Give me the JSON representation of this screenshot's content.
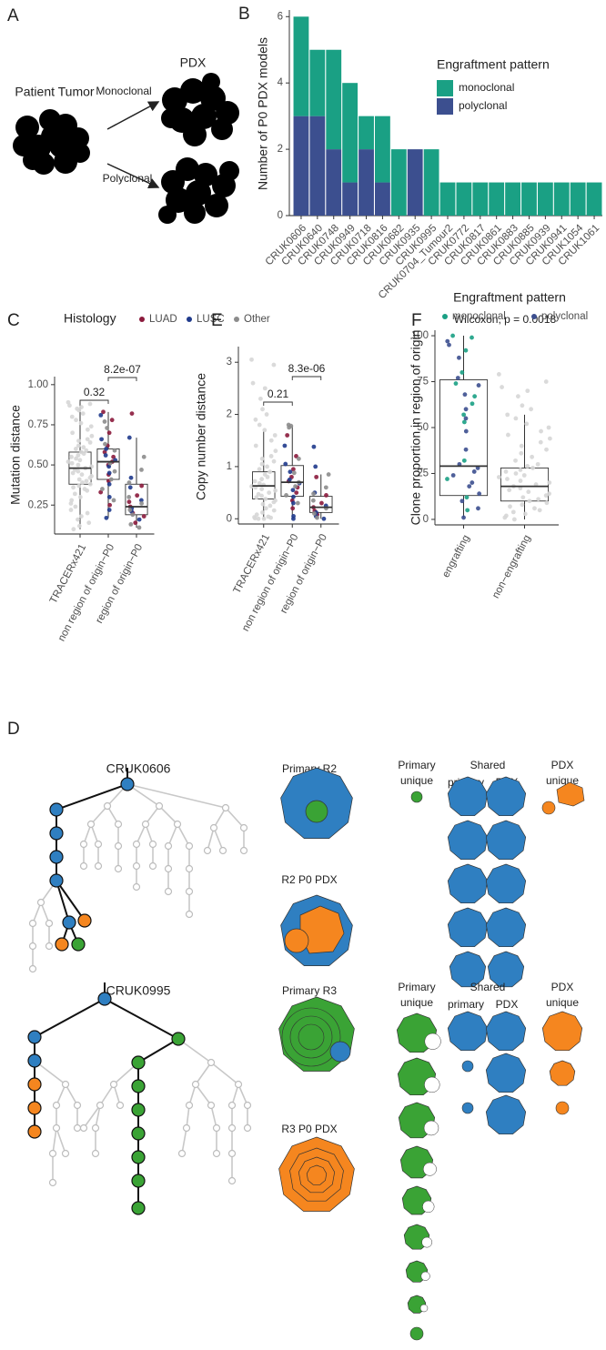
{
  "panel_a": {
    "letter": "A",
    "source": "Patient Tumor",
    "target": "PDX",
    "mono": "Monoclonal",
    "poly": "Polyclonal"
  },
  "chart_data": [
    {
      "type": "stacked-bar",
      "panel": "B",
      "ylabel": "Number of P0 PDX models",
      "categories": [
        "CRUK0606",
        "CRUK0640",
        "CRUK0748",
        "CRUK0949",
        "CRUK0718",
        "CRUK0816",
        "CRUK0682",
        "CRUK0935",
        "CRUK0995",
        "CRUK0704_Tumour2",
        "CRUK0772",
        "CRUK0817",
        "CRUK0861",
        "CRUK0883",
        "CRUK0885",
        "CRUK0939",
        "CRUK0941",
        "CRUK1054",
        "CRUK1061"
      ],
      "series": [
        {
          "name": "monoclonal",
          "color": "#1aa084",
          "values": [
            3,
            2,
            3,
            3,
            1,
            2,
            2,
            0,
            2,
            1,
            1,
            1,
            1,
            1,
            1,
            1,
            1,
            1,
            1
          ]
        },
        {
          "name": "polyclonal",
          "color": "#3c4f8f",
          "values": [
            3,
            3,
            2,
            1,
            2,
            1,
            0,
            2,
            0,
            0,
            0,
            0,
            0,
            0,
            0,
            0,
            0,
            0,
            0
          ]
        }
      ],
      "ylim": [
        0,
        6.2
      ],
      "yticks": [
        0,
        2,
        4,
        6
      ],
      "legend_title": "Engraftment pattern",
      "grid": false
    },
    {
      "type": "box",
      "panel": "C",
      "ylabel": "Mutation distance",
      "categories": [
        "TRACERx421",
        "non region of origin−P0",
        "region of origin−P0"
      ],
      "q1": [
        0.38,
        0.41,
        0.19
      ],
      "median": [
        0.48,
        0.52,
        0.24
      ],
      "q3": [
        0.58,
        0.6,
        0.38
      ],
      "whisker_low": [
        0.1,
        0.17,
        0.11
      ],
      "whisker_high": [
        0.89,
        0.83,
        0.67
      ],
      "ylim": [
        0.07,
        1.05
      ],
      "yticks": [
        0.25,
        {
          "value": 0.5,
          "label": "0.50"
        },
        0.75,
        {
          "value": 1,
          "label": "1.00"
        }
      ],
      "comparisons": [
        {
          "pair": [
            "TRACERx421",
            "non region of origin−P0"
          ],
          "label": "0.32"
        },
        {
          "pair": [
            "non region of origin−P0",
            "region of origin−P0"
          ],
          "label": "8.2e-07"
        }
      ],
      "legend": {
        "title": "Histology",
        "entries": [
          {
            "name": "LUAD",
            "color": "#8b1a3c"
          },
          {
            "name": "LUSC",
            "color": "#1f3a8c"
          },
          {
            "name": "Other",
            "color": "#8c8c8c"
          }
        ]
      },
      "points": [
        {
          "category": "TRACERx421",
          "color": "#d6d6d6",
          "values": [
            0.89,
            0.88,
            0.87,
            0.86,
            0.85,
            0.84,
            0.82,
            0.8,
            0.78,
            0.76,
            0.74,
            0.72,
            0.7,
            0.68,
            0.66,
            0.65,
            0.64,
            0.62,
            0.61,
            0.6,
            0.59,
            0.58,
            0.57,
            0.56,
            0.55,
            0.54,
            0.53,
            0.52,
            0.51,
            0.5,
            0.49,
            0.48,
            0.47,
            0.46,
            0.45,
            0.44,
            0.43,
            0.42,
            0.41,
            0.4,
            0.39,
            0.38,
            0.37,
            0.36,
            0.35,
            0.34,
            0.32,
            0.3,
            0.28,
            0.26,
            0.24,
            0.22,
            0.2,
            0.18,
            0.16,
            0.14,
            0.12,
            0.1
          ]
        },
        {
          "category": "non region of origin−P0",
          "color": "#8b1a3c",
          "values": [
            0.83,
            0.78,
            0.7,
            0.62,
            0.58,
            0.55,
            0.52,
            0.5,
            0.44,
            0.4,
            0.33,
            0.25
          ]
        },
        {
          "category": "non region of origin−P0",
          "color": "#1f3a8c",
          "values": [
            0.81,
            0.66,
            0.6,
            0.56,
            0.53,
            0.49,
            0.45,
            0.38,
            0.3,
            0.22,
            0.17
          ]
        },
        {
          "category": "non region of origin−P0",
          "color": "#8c8c8c",
          "values": [
            0.77,
            0.73,
            0.63,
            0.59,
            0.51,
            0.46,
            0.41,
            0.35,
            0.28
          ]
        },
        {
          "category": "region of origin−P0",
          "color": "#8b1a3c",
          "values": [
            0.82,
            0.37,
            0.31,
            0.27,
            0.24,
            0.2,
            0.18,
            0.14
          ]
        },
        {
          "category": "region of origin−P0",
          "color": "#1f3a8c",
          "values": [
            0.67,
            0.42,
            0.36,
            0.28,
            0.23,
            0.21,
            0.16
          ]
        },
        {
          "category": "region of origin−P0",
          "color": "#8c8c8c",
          "values": [
            0.55,
            0.47,
            0.39,
            0.3,
            0.26,
            0.22,
            0.19,
            0.13,
            0.11
          ]
        }
      ]
    },
    {
      "type": "box",
      "panel": "E",
      "ylabel": "Copy number distance",
      "categories": [
        "TRACERx421",
        "non region of origin−P0",
        "region of origin−P0"
      ],
      "q1": [
        0.38,
        0.43,
        0.12
      ],
      "median": [
        0.63,
        0.7,
        0.22
      ],
      "q3": [
        0.9,
        1.02,
        0.43
      ],
      "whisker_low": [
        0,
        0,
        0
      ],
      "whisker_high": [
        1.68,
        1.78,
        0.85
      ],
      "ylim": [
        -0.1,
        3.3
      ],
      "yticks": [
        0,
        1,
        2,
        3
      ],
      "comparisons": [
        {
          "pair": [
            "TRACERx421",
            "non region of origin−P0"
          ],
          "label": "0.21"
        },
        {
          "pair": [
            "non region of origin−P0",
            "region of origin−P0"
          ],
          "label": "8.3e-06"
        }
      ],
      "points": [
        {
          "category": "TRACERx421",
          "color": "#d6d6d6",
          "values": [
            3.05,
            2.95,
            2.6,
            2.5,
            2.3,
            2.1,
            2.0,
            1.9,
            1.8,
            1.7,
            1.6,
            1.5,
            1.4,
            1.3,
            1.2,
            1.15,
            1.1,
            1.05,
            1.0,
            0.95,
            0.9,
            0.85,
            0.8,
            0.76,
            0.72,
            0.68,
            0.65,
            0.62,
            0.6,
            0.57,
            0.54,
            0.5,
            0.47,
            0.44,
            0.41,
            0.38,
            0.35,
            0.32,
            0.28,
            0.25,
            0.2,
            0.16,
            0.12,
            0.08,
            0.04,
            0.02,
            0,
            0,
            0.01,
            0.03
          ]
        },
        {
          "category": "non region of origin−P0",
          "color": "#8b1a3c",
          "values": [
            1.6,
            1.2,
            0.95,
            0.8,
            0.72,
            0.6,
            0.5,
            0.35,
            0.2
          ]
        },
        {
          "category": "non region of origin−P0",
          "color": "#1f3a8c",
          "values": [
            1.4,
            1.05,
            0.9,
            0.75,
            0.68,
            0.55,
            0.42,
            0.3,
            0.05,
            0
          ]
        },
        {
          "category": "non region of origin−P0",
          "color": "#8c8c8c",
          "values": [
            1.8,
            1.78,
            1.75,
            1.15,
            0.88,
            0.7,
            0.62,
            0.45,
            0.3
          ]
        },
        {
          "category": "region of origin−P0",
          "color": "#8b1a3c",
          "values": [
            0.8,
            0.45,
            0.3,
            0.22,
            0.15,
            0.08
          ]
        },
        {
          "category": "region of origin−P0",
          "color": "#1f3a8c",
          "values": [
            1.38,
            1.0,
            0.5,
            0.25,
            0.12,
            0.05,
            0
          ]
        },
        {
          "category": "region of origin−P0",
          "color": "#8c8c8c",
          "values": [
            0.85,
            0.6,
            0.48,
            0.35,
            0.2,
            0.1,
            0.02
          ]
        }
      ]
    },
    {
      "type": "box",
      "panel": "F",
      "ylabel": "Clone proportion in region of origin",
      "annotation": "Wilcoxon, p = 0.0018",
      "categories": [
        "engrafting",
        "non−engrafting"
      ],
      "q1": [
        13,
        10
      ],
      "median": [
        29,
        18
      ],
      "q3": [
        76,
        28
      ],
      "whisker_low": [
        1,
        0
      ],
      "whisker_high": [
        100,
        57
      ],
      "ylim": [
        -3,
        103
      ],
      "yticks": [
        0,
        25,
        50,
        75,
        100
      ],
      "legend": {
        "title": "Engraftment pattern",
        "entries": [
          {
            "name": "monoclonal",
            "color": "#1aa084"
          },
          {
            "name": "polyclonal",
            "color": "#3c4f8f"
          }
        ]
      },
      "points": [
        {
          "category": "non−engrafting",
          "color": "#d6d6d6",
          "values": [
            79,
            75,
            72,
            70,
            67,
            62,
            60,
            57,
            55,
            52,
            50,
            48,
            46,
            44,
            42,
            40,
            38,
            36,
            34,
            32,
            30,
            29,
            28,
            27,
            26,
            25,
            24,
            23,
            22,
            21,
            20,
            19,
            18,
            17,
            16,
            15,
            14,
            13,
            12,
            11,
            10,
            9,
            8,
            7,
            6,
            5,
            4,
            3,
            2,
            1,
            0
          ]
        },
        {
          "category": "engrafting",
          "color": "#1aa084",
          "values": [
            100,
            99,
            92,
            80,
            74,
            67,
            63,
            57,
            53,
            32,
            22,
            12,
            5
          ]
        },
        {
          "category": "engrafting",
          "color": "#3c4f8f",
          "values": [
            97,
            95,
            88,
            77,
            73,
            68,
            60,
            55,
            48,
            38,
            30,
            28,
            26,
            24,
            20,
            18,
            14,
            10,
            6,
            1
          ]
        }
      ]
    }
  ],
  "panel_d": {
    "letter": "D",
    "cases": [
      {
        "id": "CRUK0606",
        "primary": "Primary R2",
        "pdx": "R2 P0 PDX",
        "primary_unique": [
          "Primary",
          "unique"
        ],
        "shared": "Shared",
        "shared_primary": "primary",
        "shared_pdx": "PDX",
        "pdx_unique": [
          "PDX",
          "unique"
        ]
      },
      {
        "id": "CRUK0995",
        "primary": "Primary R3",
        "pdx": "R3 P0 PDX",
        "primary_unique": [
          "Primary",
          "unique"
        ],
        "shared": "Shared",
        "shared_primary": "primary",
        "shared_pdx": "PDX",
        "pdx_unique": [
          "PDX",
          "unique"
        ]
      }
    ]
  }
}
